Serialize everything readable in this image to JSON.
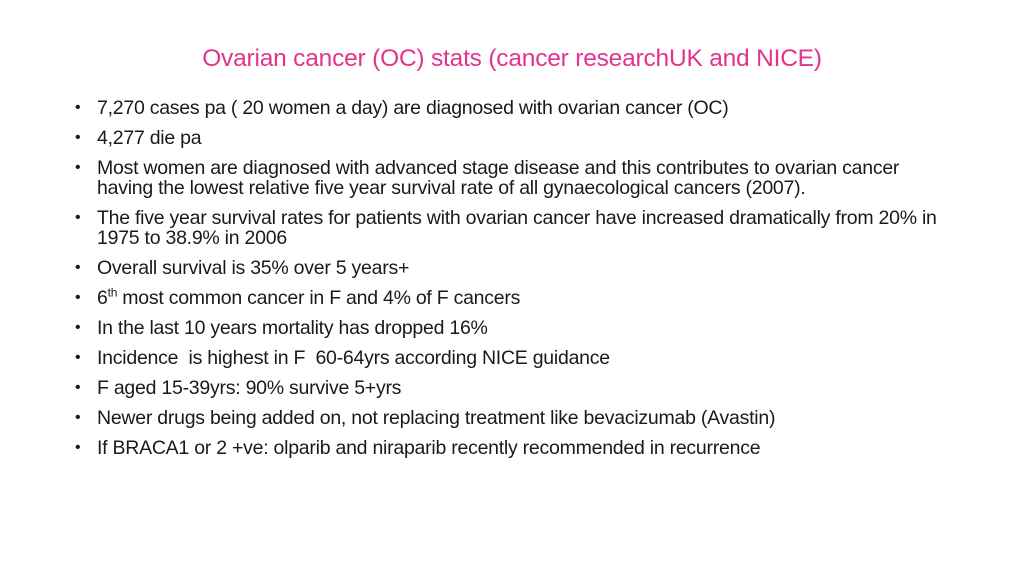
{
  "title": "Ovarian cancer (OC) stats (cancer researchUK and NICE)",
  "colors": {
    "title": "#e3338e",
    "text": "#1a1a1a",
    "background": "#ffffff"
  },
  "bullet_symbol": "•",
  "bullets": [
    {
      "text": "7,270 cases pa ( 20 women a day) are diagnosed with ovarian cancer (OC)"
    },
    {
      "text": "4,277 die pa"
    },
    {
      "text": "Most women are diagnosed with advanced stage disease and this contributes to ovarian cancer having the lowest relative five year survival rate of all gynaecological cancers (2007)."
    },
    {
      "text": "The five year survival rates for patients with ovarian cancer have increased dramatically from 20% in 1975 to 38.9% in 2006"
    },
    {
      "text": "Overall survival is 35% over 5 years+"
    },
    {
      "prefix": "6",
      "sup": "th",
      "rest": " most common cancer in F and 4% of F cancers"
    },
    {
      "text": "In the last 10 years mortality has dropped 16%"
    },
    {
      "text": "Incidence  is highest in F  60-64yrs according NICE guidance"
    },
    {
      "text": "F aged 15-39yrs: 90% survive 5+yrs"
    },
    {
      "text": "Newer drugs being added on, not replacing treatment like bevacizumab (Avastin)"
    },
    {
      "text": "If BRACA1 or 2 +ve: olparib and niraparib recently recommended in recurrence"
    }
  ]
}
